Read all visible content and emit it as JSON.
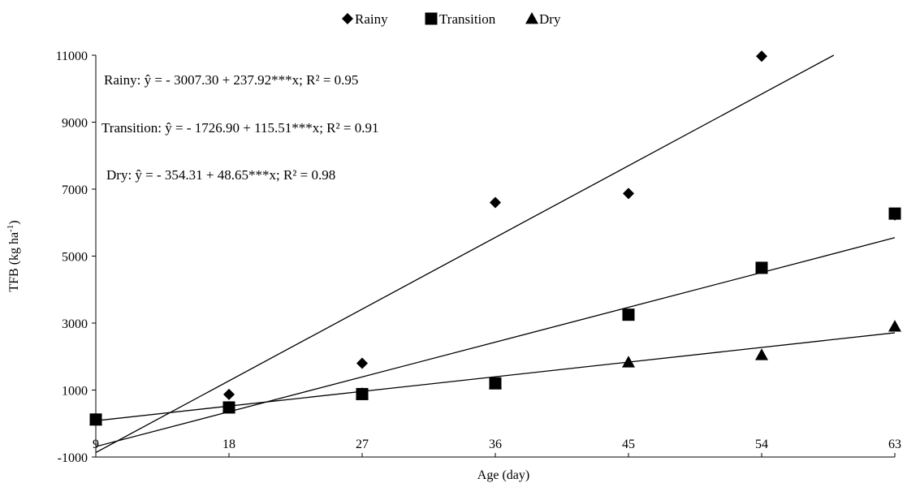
{
  "chart_data": {
    "type": "scatter",
    "title": "",
    "xlabel": "Age (day)",
    "ylabel": "TFB (kg ha⁻¹)",
    "x_ticks": [
      9,
      18,
      27,
      36,
      45,
      54,
      63
    ],
    "y_ticks": [
      -1000,
      1000,
      3000,
      5000,
      7000,
      9000,
      11000
    ],
    "xlim": [
      9,
      63
    ],
    "ylim": [
      -1000,
      11000
    ],
    "grid": false,
    "legend_position": "top-center",
    "series": [
      {
        "name": "Rainy",
        "marker": "diamond",
        "color": "#000000",
        "x": [
          9,
          18,
          27,
          36,
          45,
          54,
          63
        ],
        "y": [
          120,
          870,
          1800,
          6600,
          6870,
          10970,
          6230
        ],
        "trend": {
          "intercept": -3007.3,
          "slope": 237.92
        }
      },
      {
        "name": "Transition",
        "marker": "square",
        "color": "#000000",
        "x": [
          9,
          18,
          27,
          36,
          45,
          54,
          63
        ],
        "y": [
          120,
          480,
          880,
          1200,
          3250,
          4650,
          6270
        ],
        "trend": {
          "intercept": -1726.9,
          "slope": 115.51
        }
      },
      {
        "name": "Dry",
        "marker": "triangle",
        "color": "#000000",
        "x": [
          9,
          18,
          27,
          36,
          45,
          54,
          63
        ],
        "y": [
          120,
          480,
          890,
          1200,
          1830,
          2050,
          2900
        ],
        "trend": {
          "intercept": -354.31,
          "slope": 48.65
        }
      }
    ],
    "annotations": [
      "Rainy: ŷ = - 3007.30 + 237.92***x; R² = 0.95",
      "Transition: ŷ  = - 1726.90 + 115.51***x;  R² = 0.91",
      "Dry: ŷ  = - 354.31 + 48.65***x;  R² = 0.98"
    ]
  }
}
